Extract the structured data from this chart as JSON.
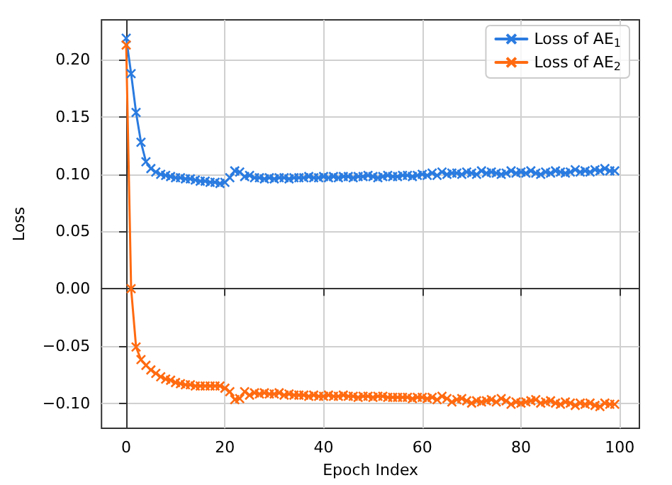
{
  "chart_data": {
    "type": "line",
    "xlabel": "Epoch Index",
    "ylabel": "Loss",
    "x": [
      0,
      1,
      2,
      3,
      4,
      5,
      6,
      7,
      8,
      9,
      10,
      11,
      12,
      13,
      14,
      15,
      16,
      17,
      18,
      19,
      20,
      21,
      22,
      23,
      24,
      25,
      26,
      27,
      28,
      29,
      30,
      31,
      32,
      33,
      34,
      35,
      36,
      37,
      38,
      39,
      40,
      41,
      42,
      43,
      44,
      45,
      46,
      47,
      48,
      49,
      50,
      51,
      52,
      53,
      54,
      55,
      56,
      57,
      58,
      59,
      60,
      61,
      62,
      63,
      64,
      65,
      66,
      67,
      68,
      69,
      70,
      71,
      72,
      73,
      74,
      75,
      76,
      77,
      78,
      79,
      80,
      81,
      82,
      83,
      84,
      85,
      86,
      87,
      88,
      89,
      90,
      91,
      92,
      93,
      94,
      95,
      96,
      97,
      98,
      99
    ],
    "series": [
      {
        "name": "Loss of AE$_{1}$",
        "color": "#2a7be0",
        "values": [
          0.219,
          0.188,
          0.154,
          0.128,
          0.111,
          0.105,
          0.102,
          0.1,
          0.099,
          0.098,
          0.097,
          0.097,
          0.096,
          0.096,
          0.095,
          0.094,
          0.094,
          0.093,
          0.093,
          0.092,
          0.093,
          0.097,
          0.103,
          0.102,
          0.098,
          0.099,
          0.097,
          0.097,
          0.096,
          0.097,
          0.096,
          0.097,
          0.097,
          0.096,
          0.097,
          0.097,
          0.097,
          0.098,
          0.097,
          0.097,
          0.098,
          0.097,
          0.098,
          0.097,
          0.098,
          0.098,
          0.097,
          0.098,
          0.098,
          0.099,
          0.098,
          0.097,
          0.098,
          0.099,
          0.098,
          0.098,
          0.099,
          0.099,
          0.098,
          0.099,
          0.1,
          0.099,
          0.101,
          0.099,
          0.102,
          0.1,
          0.101,
          0.101,
          0.1,
          0.102,
          0.101,
          0.1,
          0.103,
          0.101,
          0.102,
          0.101,
          0.1,
          0.101,
          0.103,
          0.101,
          0.102,
          0.101,
          0.103,
          0.101,
          0.1,
          0.102,
          0.101,
          0.103,
          0.102,
          0.101,
          0.102,
          0.104,
          0.102,
          0.103,
          0.102,
          0.104,
          0.103,
          0.105,
          0.103,
          0.103
        ]
      },
      {
        "name": "Loss of AE$_{2}$",
        "color": "#ff6a10",
        "values": [
          0.213,
          0.0,
          -0.051,
          -0.062,
          -0.067,
          -0.071,
          -0.074,
          -0.077,
          -0.079,
          -0.08,
          -0.082,
          -0.083,
          -0.084,
          -0.084,
          -0.085,
          -0.085,
          -0.085,
          -0.085,
          -0.085,
          -0.085,
          -0.087,
          -0.09,
          -0.097,
          -0.096,
          -0.09,
          -0.093,
          -0.091,
          -0.092,
          -0.091,
          -0.092,
          -0.092,
          -0.091,
          -0.093,
          -0.092,
          -0.093,
          -0.093,
          -0.093,
          -0.094,
          -0.093,
          -0.094,
          -0.094,
          -0.093,
          -0.094,
          -0.094,
          -0.093,
          -0.094,
          -0.094,
          -0.095,
          -0.094,
          -0.094,
          -0.095,
          -0.094,
          -0.094,
          -0.095,
          -0.095,
          -0.095,
          -0.095,
          -0.095,
          -0.096,
          -0.095,
          -0.095,
          -0.096,
          -0.095,
          -0.097,
          -0.094,
          -0.096,
          -0.099,
          -0.097,
          -0.096,
          -0.098,
          -0.1,
          -0.098,
          -0.099,
          -0.098,
          -0.097,
          -0.099,
          -0.096,
          -0.098,
          -0.101,
          -0.099,
          -0.1,
          -0.099,
          -0.098,
          -0.097,
          -0.1,
          -0.099,
          -0.098,
          -0.1,
          -0.101,
          -0.099,
          -0.1,
          -0.102,
          -0.1,
          -0.101,
          -0.1,
          -0.102,
          -0.103,
          -0.1,
          -0.101,
          -0.101
        ]
      }
    ],
    "xlim": [
      -5,
      104
    ],
    "xticks": [
      0,
      20,
      40,
      60,
      80,
      100
    ],
    "ylim": [
      -0.122,
      0.235
    ],
    "yticks": [
      {
        "value": -0.1,
        "label": "−0.10"
      },
      {
        "value": -0.05,
        "label": "−0.05"
      },
      {
        "value": 0,
        "label": "0.00"
      },
      {
        "value": 0.05,
        "label": "0.05"
      },
      {
        "value": 0.1,
        "label": "0.10"
      },
      {
        "value": 0.15,
        "label": "0.15"
      },
      {
        "value": 0.2,
        "label": "0.20"
      }
    ],
    "grid": true,
    "legend": "top right",
    "marker": "cross",
    "line_style": "solid"
  }
}
